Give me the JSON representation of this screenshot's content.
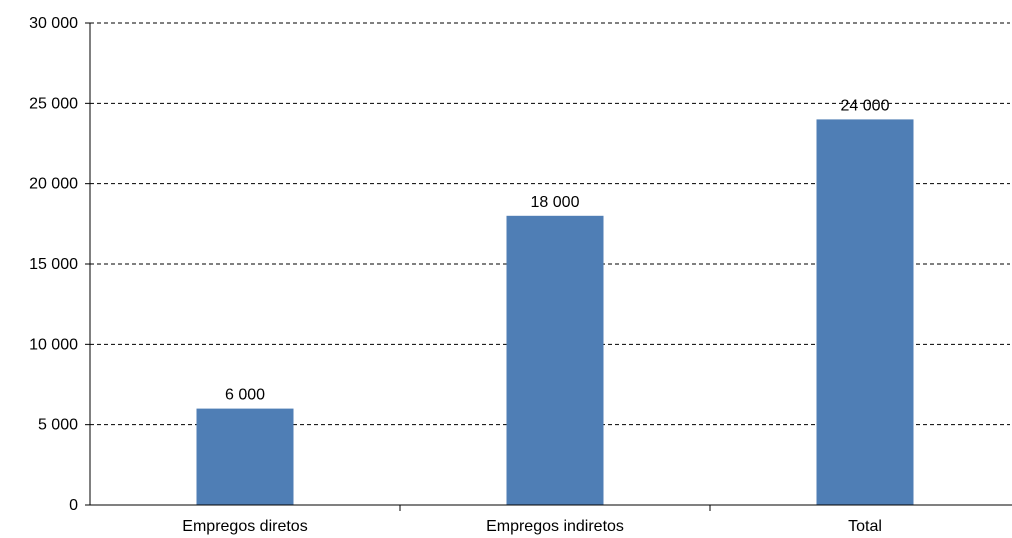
{
  "chart_data": {
    "type": "bar",
    "categories": [
      "Empregos diretos",
      "Empregos indiretos",
      "Total"
    ],
    "values": [
      6000,
      18000,
      24000
    ],
    "data_labels": [
      "6 000",
      "18 000",
      "24 000"
    ],
    "title": "",
    "xlabel": "",
    "ylabel": "",
    "ylim": [
      0,
      30000
    ],
    "yticks": [
      0,
      5000,
      10000,
      15000,
      20000,
      25000,
      30000
    ],
    "ytick_labels": [
      "0",
      "5 000",
      "10 000",
      "15 000",
      "20 000",
      "25 000",
      "30 000"
    ],
    "grid": true,
    "legend": "none",
    "bar_color": "#4f7eb5"
  }
}
